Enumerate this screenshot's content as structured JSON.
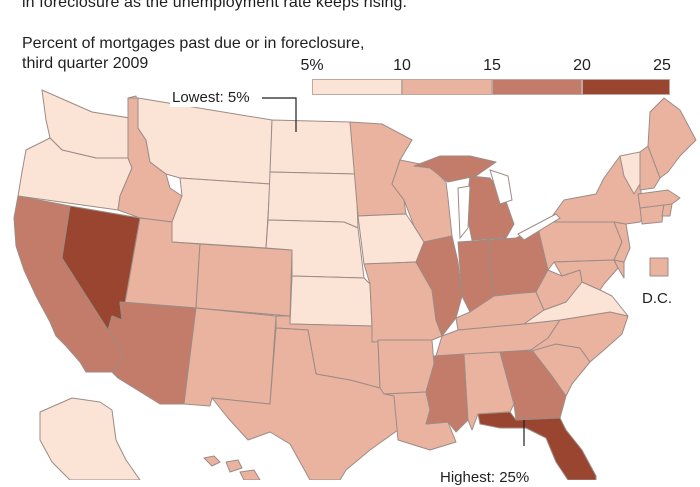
{
  "headline": "in foreclosure as the unemployment rate keeps rising.",
  "subtitle_line1": "Percent of mortgages past due or in foreclosure,",
  "subtitle_line2": "third quarter 2009",
  "legend": {
    "ticks": [
      "5%",
      "10",
      "15",
      "20",
      "25"
    ],
    "tick_values": [
      5,
      10,
      15,
      20,
      25
    ],
    "colors": [
      "#fbe3d6",
      "#e9b3a0",
      "#d69581",
      "#c47c6a",
      "#9a4530"
    ]
  },
  "callouts": {
    "lowest": "Lowest: 5%",
    "highest": "Highest: 25%"
  },
  "dc_label": "D.C.",
  "states": [
    {
      "id": "WA",
      "bin": 0
    },
    {
      "id": "OR",
      "bin": 0
    },
    {
      "id": "CA",
      "bin": 3
    },
    {
      "id": "NV",
      "bin": 4
    },
    {
      "id": "ID",
      "bin": 1
    },
    {
      "id": "MT",
      "bin": 0
    },
    {
      "id": "WY",
      "bin": 0
    },
    {
      "id": "UT",
      "bin": 1
    },
    {
      "id": "AZ",
      "bin": 3
    },
    {
      "id": "CO",
      "bin": 1
    },
    {
      "id": "NM",
      "bin": 1
    },
    {
      "id": "ND",
      "bin": 0
    },
    {
      "id": "SD",
      "bin": 0
    },
    {
      "id": "NE",
      "bin": 0
    },
    {
      "id": "KS",
      "bin": 0
    },
    {
      "id": "OK",
      "bin": 1
    },
    {
      "id": "TX",
      "bin": 1
    },
    {
      "id": "MN",
      "bin": 1
    },
    {
      "id": "IA",
      "bin": 0
    },
    {
      "id": "MO",
      "bin": 1
    },
    {
      "id": "AR",
      "bin": 1
    },
    {
      "id": "LA",
      "bin": 1
    },
    {
      "id": "WI",
      "bin": 1
    },
    {
      "id": "IL",
      "bin": 3
    },
    {
      "id": "MI",
      "bin": 3
    },
    {
      "id": "IN",
      "bin": 3
    },
    {
      "id": "OH",
      "bin": 3
    },
    {
      "id": "KY",
      "bin": 1
    },
    {
      "id": "TN",
      "bin": 1
    },
    {
      "id": "MS",
      "bin": 3
    },
    {
      "id": "AL",
      "bin": 1
    },
    {
      "id": "GA",
      "bin": 3
    },
    {
      "id": "FL",
      "bin": 4
    },
    {
      "id": "SC",
      "bin": 1
    },
    {
      "id": "NC",
      "bin": 1
    },
    {
      "id": "VA",
      "bin": 0
    },
    {
      "id": "WV",
      "bin": 1
    },
    {
      "id": "PA",
      "bin": 1
    },
    {
      "id": "NY",
      "bin": 1
    },
    {
      "id": "VT",
      "bin": 0
    },
    {
      "id": "NH",
      "bin": 1
    },
    {
      "id": "ME",
      "bin": 1
    },
    {
      "id": "MA",
      "bin": 1
    },
    {
      "id": "CT",
      "bin": 1
    },
    {
      "id": "RI",
      "bin": 1
    },
    {
      "id": "NJ",
      "bin": 1
    },
    {
      "id": "DE",
      "bin": 1
    },
    {
      "id": "MD",
      "bin": 1
    },
    {
      "id": "DC",
      "bin": 1
    },
    {
      "id": "AK",
      "bin": 0
    },
    {
      "id": "HI",
      "bin": 1
    }
  ]
}
